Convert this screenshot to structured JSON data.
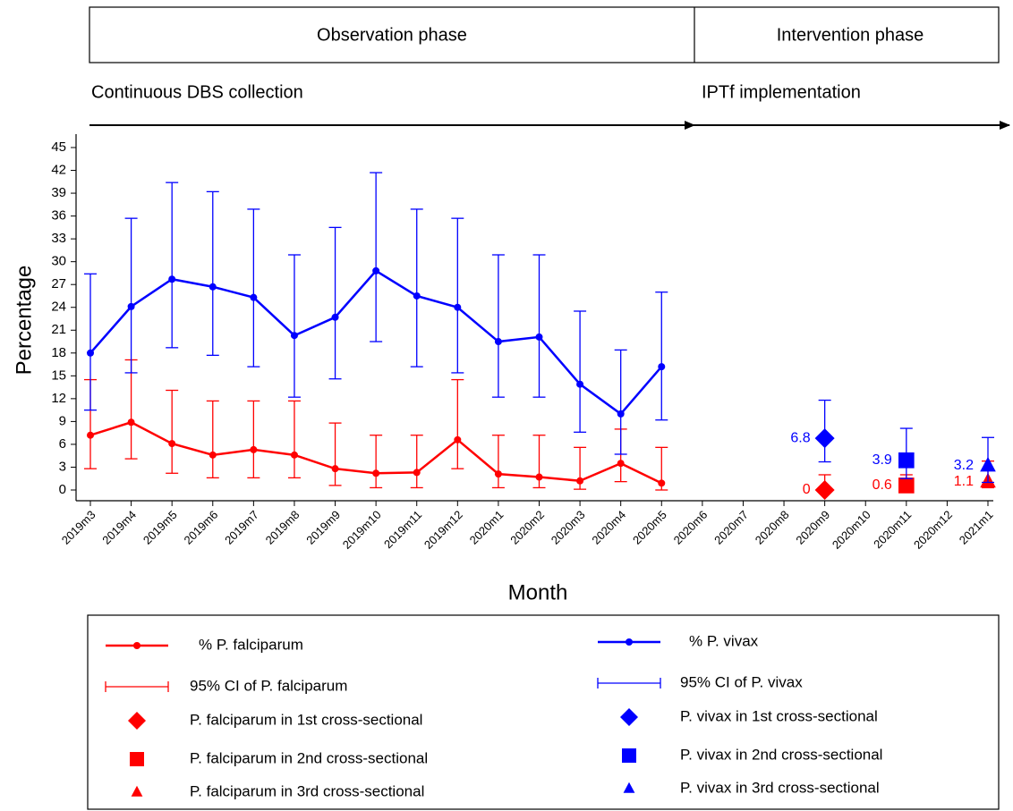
{
  "chart_data": {
    "type": "line",
    "phases": [
      "Observation phase",
      "Intervention phase"
    ],
    "activities": [
      "Continuous DBS collection",
      "IPTf implementation"
    ],
    "y_label": "Percentage",
    "x_label": "Month",
    "categories": [
      "2019m3",
      "2019m4",
      "2019m5",
      "2019m6",
      "2019m7",
      "2019m8",
      "2019m9",
      "2019m10",
      "2019m11",
      "2019m12",
      "2020m1",
      "2020m2",
      "2020m3",
      "2020m4",
      "2020m5",
      "2020m6",
      "2020m7",
      "2020m8",
      "2020m9",
      "2020m10",
      "2020m11",
      "2020m12",
      "2021m1"
    ],
    "ylim": [
      0,
      45
    ],
    "yticks": [
      0,
      3,
      6,
      9,
      12,
      15,
      18,
      21,
      24,
      27,
      30,
      33,
      36,
      39,
      42,
      45
    ],
    "series": [
      {
        "name": "% P. falciparum",
        "ci_name": "95% CI of P. falciparum",
        "color": "#ff0000",
        "values": [
          7.2,
          8.9,
          6.1,
          4.6,
          5.3,
          4.6,
          2.8,
          2.2,
          2.3,
          6.6,
          2.1,
          1.7,
          1.2,
          3.5,
          0.9,
          null,
          null,
          null,
          null,
          null,
          null,
          null,
          null
        ],
        "lower": [
          2.8,
          4.1,
          2.2,
          1.6,
          1.6,
          1.6,
          0.6,
          0.3,
          0.3,
          2.8,
          0.3,
          0.3,
          0.1,
          1.1,
          0.0,
          null,
          null,
          null,
          null,
          null,
          null,
          null,
          null
        ],
        "upper": [
          14.5,
          17.1,
          13.1,
          11.7,
          11.7,
          11.7,
          8.8,
          7.2,
          7.2,
          14.5,
          7.2,
          7.2,
          5.6,
          8.0,
          5.6,
          null,
          null,
          null,
          null,
          null,
          null,
          null,
          null
        ]
      },
      {
        "name": "% P. vivax",
        "ci_name": "95% CI of P. vivax",
        "color": "#0000ff",
        "values": [
          18.0,
          24.1,
          27.7,
          26.7,
          25.3,
          20.3,
          22.7,
          28.8,
          25.5,
          24.0,
          19.5,
          20.1,
          13.9,
          10.0,
          16.2,
          null,
          null,
          null,
          null,
          null,
          null,
          null,
          null
        ],
        "lower": [
          10.5,
          15.4,
          18.7,
          17.7,
          16.2,
          12.2,
          14.6,
          19.5,
          16.2,
          15.4,
          12.2,
          12.2,
          7.6,
          4.7,
          9.2,
          null,
          null,
          null,
          null,
          null,
          null,
          null,
          null
        ],
        "upper": [
          28.4,
          35.7,
          40.4,
          39.2,
          36.9,
          30.9,
          34.5,
          41.7,
          36.9,
          35.7,
          30.9,
          30.9,
          23.5,
          18.4,
          26.0,
          null,
          null,
          null,
          null,
          null,
          null,
          null,
          null
        ]
      }
    ],
    "points": [
      {
        "name": "P. falciparum in 1st cross-sectional",
        "color": "#ff0000",
        "marker": "diamond",
        "category": "2020m9",
        "value": 0,
        "lower": 0,
        "upper": 2.0
      },
      {
        "name": "P. vivax in 1st cross-sectional",
        "color": "#0000ff",
        "marker": "diamond",
        "category": "2020m9",
        "value": 6.8,
        "lower": 3.7,
        "upper": 11.8
      },
      {
        "name": "P. falciparum in 2nd cross-sectional",
        "color": "#ff0000",
        "marker": "square",
        "category": "2020m11",
        "value": 0.6,
        "lower": 0.1,
        "upper": 2.0
      },
      {
        "name": "P. vivax in 2nd cross-sectional",
        "color": "#0000ff",
        "marker": "square",
        "category": "2020m11",
        "value": 3.9,
        "lower": 1.5,
        "upper": 8.1
      },
      {
        "name": "P. falciparum in 3rd cross-sectional",
        "color": "#ff0000",
        "marker": "triangle",
        "category": "2021m1",
        "value": 1.1,
        "lower": 0.3,
        "upper": 3.8
      },
      {
        "name": "P. vivax in 3rd cross-sectional",
        "color": "#0000ff",
        "marker": "triangle",
        "category": "2021m1",
        "value": 3.2,
        "lower": 1.0,
        "upper": 6.9
      }
    ]
  }
}
